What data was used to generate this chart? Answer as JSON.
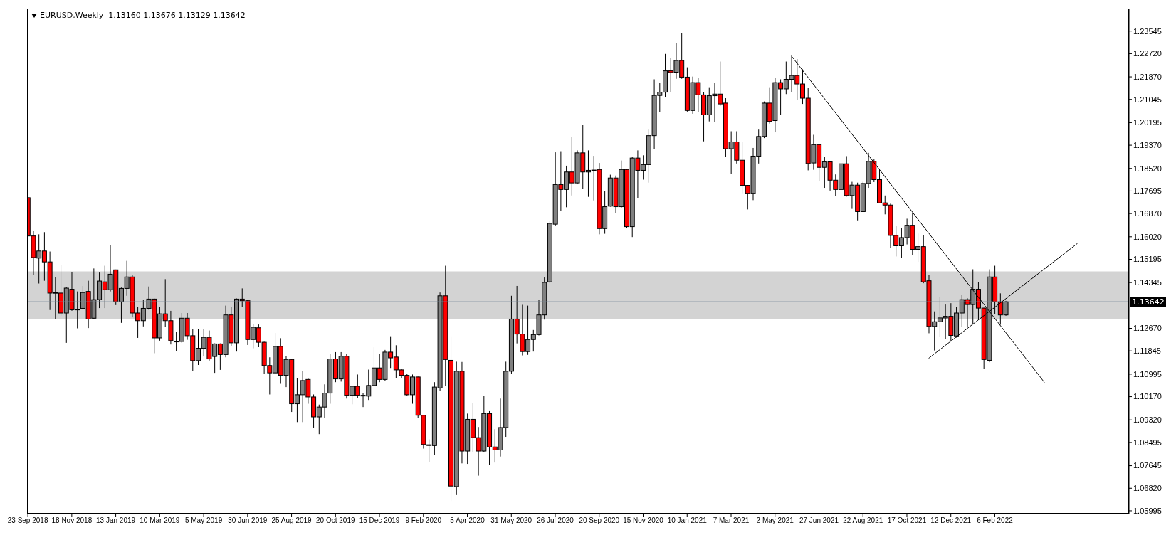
{
  "chart_data": {
    "type": "candlestick",
    "title": "EURUSD,Weekly  1.13160 1.13676 1.13129 1.13642",
    "x": [
      "2018-09-23",
      "2018-09-30",
      "2018-10-07",
      "2018-10-14",
      "2018-10-21",
      "2018-10-28",
      "2018-11-04",
      "2018-11-11",
      "2018-11-18",
      "2018-11-25",
      "2018-12-02",
      "2018-12-09",
      "2018-12-16",
      "2018-12-23",
      "2018-12-30",
      "2019-01-06",
      "2019-01-13",
      "2019-01-20",
      "2019-01-27",
      "2019-02-03",
      "2019-02-10",
      "2019-02-17",
      "2019-02-24",
      "2019-03-03",
      "2019-03-10",
      "2019-03-17",
      "2019-03-24",
      "2019-03-31",
      "2019-04-07",
      "2019-04-14",
      "2019-04-21",
      "2019-04-28",
      "2019-05-05",
      "2019-05-12",
      "2019-05-19",
      "2019-05-26",
      "2019-06-02",
      "2019-06-09",
      "2019-06-16",
      "2019-06-23",
      "2019-06-30",
      "2019-07-07",
      "2019-07-14",
      "2019-07-21",
      "2019-07-28",
      "2019-08-04",
      "2019-08-11",
      "2019-08-18",
      "2019-08-25",
      "2019-09-01",
      "2019-09-08",
      "2019-09-15",
      "2019-09-22",
      "2019-09-29",
      "2019-10-06",
      "2019-10-13",
      "2019-10-20",
      "2019-10-27",
      "2019-11-03",
      "2019-11-10",
      "2019-11-17",
      "2019-11-24",
      "2019-12-01",
      "2019-12-08",
      "2019-12-15",
      "2019-12-22",
      "2019-12-29",
      "2020-01-05",
      "2020-01-12",
      "2020-01-19",
      "2020-01-26",
      "2020-02-02",
      "2020-02-09",
      "2020-02-16",
      "2020-02-23",
      "2020-03-01",
      "2020-03-08",
      "2020-03-15",
      "2020-03-22",
      "2020-03-29",
      "2020-04-05",
      "2020-04-12",
      "2020-04-19",
      "2020-04-26",
      "2020-05-03",
      "2020-05-10",
      "2020-05-17",
      "2020-05-24",
      "2020-05-31",
      "2020-06-07",
      "2020-06-14",
      "2020-06-21",
      "2020-06-28",
      "2020-07-05",
      "2020-07-12",
      "2020-07-19",
      "2020-07-26",
      "2020-08-02",
      "2020-08-09",
      "2020-08-16",
      "2020-08-23",
      "2020-08-30",
      "2020-09-06",
      "2020-09-13",
      "2020-09-20",
      "2020-09-27",
      "2020-10-04",
      "2020-10-11",
      "2020-10-18",
      "2020-10-25",
      "2020-11-01",
      "2020-11-08",
      "2020-11-15",
      "2020-11-22",
      "2020-11-29",
      "2020-12-06",
      "2020-12-13",
      "2020-12-20",
      "2020-12-27",
      "2021-01-03",
      "2021-01-10",
      "2021-01-17",
      "2021-01-24",
      "2021-01-31",
      "2021-02-07",
      "2021-02-14",
      "2021-02-21",
      "2021-02-28",
      "2021-03-07",
      "2021-03-14",
      "2021-03-21",
      "2021-03-28",
      "2021-04-04",
      "2021-04-11",
      "2021-04-18",
      "2021-04-25",
      "2021-05-02",
      "2021-05-09",
      "2021-05-16",
      "2021-05-23",
      "2021-05-30",
      "2021-06-06",
      "2021-06-13",
      "2021-06-20",
      "2021-06-27",
      "2021-07-04",
      "2021-07-11",
      "2021-07-18",
      "2021-07-25",
      "2021-08-01",
      "2021-08-08",
      "2021-08-15",
      "2021-08-22",
      "2021-08-29",
      "2021-09-05",
      "2021-09-12",
      "2021-09-19",
      "2021-09-26",
      "2021-10-03",
      "2021-10-10",
      "2021-10-17",
      "2021-10-24",
      "2021-10-31",
      "2021-11-07",
      "2021-11-14",
      "2021-11-21",
      "2021-11-28",
      "2021-12-05",
      "2021-12-12",
      "2021-12-19",
      "2021-12-26",
      "2022-01-02",
      "2022-01-09",
      "2022-01-16",
      "2022-01-23",
      "2022-01-30",
      "2022-02-06",
      "2022-02-13",
      "2022-02-20"
    ],
    "ohlc": [
      [
        1.1745,
        1.1814,
        1.1568,
        1.1605
      ],
      [
        1.1605,
        1.1623,
        1.1462,
        1.1526
      ],
      [
        1.1524,
        1.1611,
        1.1431,
        1.155
      ],
      [
        1.155,
        1.1619,
        1.1441,
        1.151
      ],
      [
        1.151,
        1.1548,
        1.1334,
        1.1396
      ],
      [
        1.1396,
        1.1455,
        1.1301,
        1.1398
      ],
      [
        1.1396,
        1.1498,
        1.1313,
        1.1323
      ],
      [
        1.1323,
        1.1419,
        1.1214,
        1.1414
      ],
      [
        1.141,
        1.1474,
        1.1331,
        1.1335
      ],
      [
        1.1337,
        1.1402,
        1.1267,
        1.1335
      ],
      [
        1.134,
        1.1422,
        1.1338,
        1.1398
      ],
      [
        1.1402,
        1.1441,
        1.1268,
        1.1301
      ],
      [
        1.1304,
        1.1486,
        1.1301,
        1.1372
      ],
      [
        1.1372,
        1.1471,
        1.1341,
        1.144
      ],
      [
        1.1437,
        1.1496,
        1.1341,
        1.1408
      ],
      [
        1.1408,
        1.1571,
        1.1402,
        1.1465
      ],
      [
        1.1481,
        1.1482,
        1.1352,
        1.1364
      ],
      [
        1.1364,
        1.1416,
        1.1287,
        1.1413
      ],
      [
        1.1413,
        1.1514,
        1.1386,
        1.1455
      ],
      [
        1.1455,
        1.1461,
        1.1307,
        1.1323
      ],
      [
        1.1323,
        1.1344,
        1.1232,
        1.1295
      ],
      [
        1.1295,
        1.1372,
        1.1274,
        1.134
      ],
      [
        1.134,
        1.142,
        1.1335,
        1.1374
      ],
      [
        1.1374,
        1.1376,
        1.1176,
        1.1232
      ],
      [
        1.1232,
        1.1344,
        1.1222,
        1.132
      ],
      [
        1.132,
        1.1447,
        1.1271,
        1.1295
      ],
      [
        1.1295,
        1.1331,
        1.1208,
        1.1222
      ],
      [
        1.122,
        1.1255,
        1.1183,
        1.1219
      ],
      [
        1.1219,
        1.1323,
        1.1214,
        1.1304
      ],
      [
        1.1304,
        1.1323,
        1.1225,
        1.124
      ],
      [
        1.124,
        1.1265,
        1.111,
        1.1149
      ],
      [
        1.1149,
        1.1265,
        1.1133,
        1.1194
      ],
      [
        1.1194,
        1.1265,
        1.1164,
        1.1234
      ],
      [
        1.1234,
        1.1259,
        1.1149,
        1.1155
      ],
      [
        1.1164,
        1.1212,
        1.1104,
        1.121
      ],
      [
        1.121,
        1.1212,
        1.1115,
        1.1171
      ],
      [
        1.1171,
        1.135,
        1.1161,
        1.1316
      ],
      [
        1.1316,
        1.1344,
        1.1201,
        1.1214
      ],
      [
        1.1214,
        1.1376,
        1.1182,
        1.1374
      ],
      [
        1.1374,
        1.1413,
        1.1344,
        1.1368
      ],
      [
        1.1368,
        1.137,
        1.1206,
        1.1226
      ],
      [
        1.1226,
        1.1283,
        1.1194,
        1.1271
      ],
      [
        1.1269,
        1.1281,
        1.1198,
        1.1216
      ],
      [
        1.1216,
        1.1218,
        1.1101,
        1.1131
      ],
      [
        1.1131,
        1.1161,
        1.1025,
        1.1104
      ],
      [
        1.1104,
        1.125,
        1.1102,
        1.1201
      ],
      [
        1.1201,
        1.1231,
        1.1064,
        1.1095
      ],
      [
        1.1095,
        1.1165,
        1.1052,
        1.1153
      ],
      [
        1.1153,
        1.1155,
        1.0961,
        1.0991
      ],
      [
        1.0991,
        1.1085,
        1.0924,
        1.1024
      ],
      [
        1.1024,
        1.111,
        1.0924,
        1.1076
      ],
      [
        1.108,
        1.1085,
        1.0991,
        1.1016
      ],
      [
        1.1016,
        1.1025,
        1.0904,
        1.0943
      ],
      [
        1.0943,
        1.0988,
        1.088,
        1.0979
      ],
      [
        1.0979,
        1.1062,
        1.094,
        1.103
      ],
      [
        1.103,
        1.1174,
        1.0991,
        1.1155
      ],
      [
        1.1155,
        1.118,
        1.107,
        1.1082
      ],
      [
        1.1082,
        1.118,
        1.1072,
        1.1165
      ],
      [
        1.1165,
        1.1174,
        1.101,
        1.1022
      ],
      [
        1.1022,
        1.1056,
        1.0989,
        1.1055
      ],
      [
        1.1055,
        1.1098,
        1.1013,
        1.1022
      ],
      [
        1.1022,
        1.103,
        1.0979,
        1.1022
      ],
      [
        1.1019,
        1.1116,
        1.1005,
        1.1058
      ],
      [
        1.1058,
        1.1198,
        1.1055,
        1.1122
      ],
      [
        1.1122,
        1.1174,
        1.107,
        1.108
      ],
      [
        1.108,
        1.1188,
        1.1074,
        1.118
      ],
      [
        1.118,
        1.1238,
        1.1122,
        1.1159
      ],
      [
        1.1162,
        1.1205,
        1.1085,
        1.1115
      ],
      [
        1.1115,
        1.1119,
        1.1085,
        1.1095
      ],
      [
        1.1095,
        1.1101,
        1.1019,
        1.1024
      ],
      [
        1.1024,
        1.1098,
        1.0991,
        1.1089
      ],
      [
        1.1089,
        1.109,
        1.094,
        1.0949
      ],
      [
        1.0949,
        1.095,
        1.0827,
        1.0842
      ],
      [
        1.084,
        1.0861,
        1.0779,
        1.0841
      ],
      [
        1.0838,
        1.107,
        1.0803,
        1.1052
      ],
      [
        1.1049,
        1.1398,
        1.1037,
        1.1386
      ],
      [
        1.1386,
        1.1496,
        1.1056,
        1.1153
      ],
      [
        1.115,
        1.1238,
        1.0635,
        1.069
      ],
      [
        1.0688,
        1.1145,
        1.0657,
        1.111
      ],
      [
        1.111,
        1.1144,
        1.0773,
        1.0818
      ],
      [
        1.0818,
        1.0955,
        1.0771,
        1.0934
      ],
      [
        1.0934,
        1.0994,
        1.0813,
        1.0867
      ],
      [
        1.0867,
        1.0906,
        1.0728,
        1.0818
      ],
      [
        1.0818,
        1.1019,
        1.0815,
        1.0955
      ],
      [
        1.0955,
        1.0964,
        1.0766,
        1.0833
      ],
      [
        1.0833,
        1.0898,
        1.0776,
        1.0822
      ],
      [
        1.0822,
        1.101,
        1.0798,
        1.0904
      ],
      [
        1.0904,
        1.1145,
        1.087,
        1.111
      ],
      [
        1.111,
        1.1386,
        1.1101,
        1.1301
      ],
      [
        1.1301,
        1.1422,
        1.1212,
        1.1246
      ],
      [
        1.1246,
        1.1353,
        1.1168,
        1.1182
      ],
      [
        1.1182,
        1.135,
        1.117,
        1.1226
      ],
      [
        1.1226,
        1.1261,
        1.1182,
        1.1244
      ],
      [
        1.1244,
        1.1372,
        1.1241,
        1.1316
      ],
      [
        1.1316,
        1.1453,
        1.1299,
        1.1435
      ],
      [
        1.1437,
        1.166,
        1.1432,
        1.1651
      ],
      [
        1.1648,
        1.1911,
        1.1642,
        1.1793
      ],
      [
        1.1793,
        1.1915,
        1.1696,
        1.1775
      ],
      [
        1.1775,
        1.1862,
        1.171,
        1.1839
      ],
      [
        1.1839,
        1.1966,
        1.1753,
        1.1799
      ],
      [
        1.1799,
        1.1918,
        1.1794,
        1.1909
      ],
      [
        1.1909,
        1.2012,
        1.1778,
        1.1839
      ],
      [
        1.1839,
        1.1918,
        1.1748,
        1.1845
      ],
      [
        1.1845,
        1.1898,
        1.1735,
        1.1846
      ],
      [
        1.1848,
        1.1872,
        1.1611,
        1.1632
      ],
      [
        1.1632,
        1.1769,
        1.1613,
        1.1712
      ],
      [
        1.1714,
        1.1829,
        1.1712,
        1.1817
      ],
      [
        1.1817,
        1.1826,
        1.1688,
        1.1712
      ],
      [
        1.1712,
        1.1881,
        1.1707,
        1.1848
      ],
      [
        1.1848,
        1.1851,
        1.1635,
        1.1639
      ],
      [
        1.1639,
        1.1894,
        1.1601,
        1.189
      ],
      [
        1.189,
        1.1918,
        1.1743,
        1.1845
      ],
      [
        1.1845,
        1.19,
        1.1811,
        1.1866
      ],
      [
        1.1866,
        1.1994,
        1.18,
        1.1972
      ],
      [
        1.1972,
        1.2178,
        1.1923,
        1.2119
      ],
      [
        1.2119,
        1.2164,
        1.2057,
        1.2131
      ],
      [
        1.2131,
        1.2271,
        1.2113,
        1.2209
      ],
      [
        1.2209,
        1.2255,
        1.213,
        1.2203
      ],
      [
        1.2204,
        1.231,
        1.218,
        1.2247
      ],
      [
        1.2247,
        1.2348,
        1.218,
        1.2186
      ],
      [
        1.2186,
        1.2222,
        1.206,
        1.2064
      ],
      [
        1.2064,
        1.2188,
        1.2052,
        1.2166
      ],
      [
        1.2166,
        1.2182,
        1.2057,
        1.2121
      ],
      [
        1.2121,
        1.213,
        1.1951,
        1.2048
      ],
      [
        1.2048,
        1.2149,
        1.2024,
        1.2118
      ],
      [
        1.2118,
        1.2166,
        1.2021,
        1.2124
      ],
      [
        1.2124,
        1.2243,
        1.2081,
        1.2088
      ],
      [
        1.2091,
        1.2109,
        1.1893,
        1.1924
      ],
      [
        1.1924,
        1.1988,
        1.1833,
        1.1949
      ],
      [
        1.1949,
        1.1988,
        1.187,
        1.1882
      ],
      [
        1.1882,
        1.1949,
        1.1761,
        1.179
      ],
      [
        1.179,
        1.1791,
        1.1702,
        1.1761
      ],
      [
        1.1761,
        1.1927,
        1.1736,
        1.1897
      ],
      [
        1.1897,
        1.1994,
        1.187,
        1.1969
      ],
      [
        1.1969,
        1.2097,
        1.1963,
        1.2091
      ],
      [
        1.2091,
        1.2149,
        1.2016,
        1.2024
      ],
      [
        1.2027,
        1.2182,
        1.1984,
        1.2166
      ],
      [
        1.2166,
        1.2178,
        1.2048,
        1.2143
      ],
      [
        1.2143,
        1.2243,
        1.2124,
        1.2178
      ],
      [
        1.2178,
        1.2263,
        1.213,
        1.2192
      ],
      [
        1.2192,
        1.2252,
        1.2103,
        1.2161
      ],
      [
        1.2161,
        1.2215,
        1.2088,
        1.2109
      ],
      [
        1.2109,
        1.2146,
        1.1845,
        1.187
      ],
      [
        1.1872,
        1.1975,
        1.1847,
        1.1939
      ],
      [
        1.1939,
        1.1941,
        1.1805,
        1.1856
      ],
      [
        1.1856,
        1.1893,
        1.1781,
        1.1876
      ],
      [
        1.1876,
        1.1878,
        1.1771,
        1.1809
      ],
      [
        1.1809,
        1.183,
        1.1751,
        1.1775
      ],
      [
        1.1775,
        1.1909,
        1.1769,
        1.1869
      ],
      [
        1.1869,
        1.1897,
        1.1749,
        1.1753
      ],
      [
        1.1753,
        1.1803,
        1.1704,
        1.1791
      ],
      [
        1.1791,
        1.18,
        1.1662,
        1.1694
      ],
      [
        1.1694,
        1.1803,
        1.1693,
        1.1797
      ],
      [
        1.1797,
        1.1909,
        1.1781,
        1.1878
      ],
      [
        1.1878,
        1.1885,
        1.1802,
        1.1811
      ],
      [
        1.1811,
        1.1848,
        1.1724,
        1.1726
      ],
      [
        1.1726,
        1.1753,
        1.1684,
        1.1718
      ],
      [
        1.1718,
        1.1723,
        1.156,
        1.1607
      ],
      [
        1.1607,
        1.1641,
        1.153,
        1.1569
      ],
      [
        1.1569,
        1.1635,
        1.1524,
        1.1599
      ],
      [
        1.1599,
        1.1668,
        1.1574,
        1.1644
      ],
      [
        1.1644,
        1.169,
        1.1535,
        1.1556
      ],
      [
        1.1556,
        1.1614,
        1.151,
        1.1566
      ],
      [
        1.1566,
        1.1608,
        1.1432,
        1.1437
      ],
      [
        1.1441,
        1.1461,
        1.1249,
        1.1274
      ],
      [
        1.1274,
        1.1329,
        1.1186,
        1.1291
      ],
      [
        1.1291,
        1.1382,
        1.1235,
        1.1305
      ],
      [
        1.1305,
        1.1354,
        1.1229,
        1.1311
      ],
      [
        1.1311,
        1.1359,
        1.122,
        1.1241
      ],
      [
        1.1239,
        1.1344,
        1.1233,
        1.1323
      ],
      [
        1.1323,
        1.1389,
        1.1271,
        1.1372
      ],
      [
        1.1372,
        1.1377,
        1.1271,
        1.1354
      ],
      [
        1.1354,
        1.1483,
        1.1283,
        1.141
      ],
      [
        1.141,
        1.1435,
        1.1299,
        1.1341
      ],
      [
        1.1341,
        1.1342,
        1.1119,
        1.1153
      ],
      [
        1.115,
        1.1483,
        1.1143,
        1.1455
      ],
      [
        1.1455,
        1.1496,
        1.1319,
        1.1364
      ],
      [
        1.1364,
        1.1395,
        1.128,
        1.1316
      ],
      [
        1.1316,
        1.13676,
        1.13129,
        1.13642
      ]
    ],
    "colors": [
      "#ff0000",
      "#ff0000",
      "#808080",
      "#ff0000",
      "#ff0000",
      "#808080",
      "#ff0000",
      "#808080",
      "#ff0000",
      "#ff0000",
      "#808080",
      "#ff0000",
      "#808080",
      "#808080",
      "#ff0000",
      "#808080",
      "#ff0000",
      "#808080",
      "#808080",
      "#ff0000",
      "#ff0000",
      "#808080",
      "#808080",
      "#ff0000",
      "#808080",
      "#ff0000",
      "#ff0000",
      "#ff0000",
      "#808080",
      "#ff0000",
      "#ff0000",
      "#808080",
      "#808080",
      "#ff0000",
      "#808080",
      "#ff0000",
      "#808080",
      "#ff0000",
      "#808080",
      "#ff0000",
      "#ff0000",
      "#808080",
      "#ff0000",
      "#ff0000",
      "#ff0000",
      "#808080",
      "#ff0000",
      "#808080",
      "#ff0000",
      "#808080",
      "#808080",
      "#ff0000",
      "#ff0000",
      "#808080",
      "#808080",
      "#808080",
      "#ff0000",
      "#808080",
      "#ff0000",
      "#808080",
      "#ff0000",
      "#808080",
      "#808080",
      "#808080",
      "#ff0000",
      "#808080",
      "#ff0000",
      "#ff0000",
      "#ff0000",
      "#ff0000",
      "#808080",
      "#ff0000",
      "#ff0000",
      "#808080",
      "#808080",
      "#808080",
      "#ff0000",
      "#ff0000",
      "#808080",
      "#ff0000",
      "#808080",
      "#ff0000",
      "#ff0000",
      "#808080",
      "#ff0000",
      "#ff0000",
      "#808080",
      "#808080",
      "#808080",
      "#ff0000",
      "#ff0000",
      "#808080",
      "#808080",
      "#808080",
      "#808080",
      "#808080",
      "#808080",
      "#ff0000",
      "#808080",
      "#ff0000",
      "#808080",
      "#ff0000",
      "#808080",
      "#808080",
      "#ff0000",
      "#808080",
      "#808080",
      "#ff0000",
      "#808080",
      "#ff0000",
      "#808080",
      "#ff0000",
      "#808080",
      "#808080",
      "#808080",
      "#808080",
      "#808080",
      "#ff0000",
      "#808080",
      "#ff0000",
      "#ff0000",
      "#808080",
      "#ff0000",
      "#ff0000",
      "#808080",
      "#808080",
      "#ff0000",
      "#ff0000",
      "#808080",
      "#ff0000",
      "#ff0000",
      "#ff0000",
      "#808080",
      "#808080",
      "#808080",
      "#ff0000",
      "#808080",
      "#ff0000",
      "#808080",
      "#808080",
      "#ff0000",
      "#ff0000",
      "#ff0000",
      "#808080",
      "#ff0000",
      "#808080",
      "#ff0000",
      "#ff0000",
      "#808080",
      "#ff0000",
      "#808080",
      "#ff0000",
      "#808080",
      "#808080",
      "#ff0000",
      "#ff0000",
      "#ff0000",
      "#ff0000",
      "#ff0000",
      "#808080",
      "#808080",
      "#ff0000",
      "#808080",
      "#ff0000",
      "#ff0000",
      "#808080",
      "#808080",
      "#808080",
      "#ff0000",
      "#808080",
      "#808080",
      "#ff0000",
      "#808080",
      "#ff0000",
      "#ff0000",
      "#808080",
      "#ff0000",
      "#ff0000",
      "#808080"
    ],
    "series": [
      {
        "type": "line",
        "x": [
          "2021-05-23",
          "2022-04-10"
        ],
        "values": [
          1.2263,
          1.107
        ],
        "color": "#000000"
      },
      {
        "type": "line",
        "x": [
          "2021-11-14",
          "2022-05-22"
        ],
        "values": [
          1.1158,
          1.1577
        ],
        "color": "#000000"
      }
    ],
    "xlim": [
      "2018-09-22",
      "2022-07-27"
    ],
    "xticks": [
      {
        "value": "2018-09-23",
        "label": "23 Sep 2018"
      },
      {
        "value": "2018-11-18",
        "label": "18 Nov 2018"
      },
      {
        "value": "2019-01-13",
        "label": "13 Jan 2019"
      },
      {
        "value": "2019-03-10",
        "label": "10 Mar 2019"
      },
      {
        "value": "2019-05-05",
        "label": "5 May 2019"
      },
      {
        "value": "2019-06-30",
        "label": "30 Jun 2019"
      },
      {
        "value": "2019-08-25",
        "label": "25 Aug 2019"
      },
      {
        "value": "2019-10-20",
        "label": "20 Oct 2019"
      },
      {
        "value": "2019-12-15",
        "label": "15 Dec 2019"
      },
      {
        "value": "2020-02-09",
        "label": "9 Feb 2020"
      },
      {
        "value": "2020-04-05",
        "label": "5 Apr 2020"
      },
      {
        "value": "2020-05-31",
        "label": "31 May 2020"
      },
      {
        "value": "2020-07-26",
        "label": "26 Jul 2020"
      },
      {
        "value": "2020-09-20",
        "label": "20 Sep 2020"
      },
      {
        "value": "2020-11-15",
        "label": "15 Nov 2020"
      },
      {
        "value": "2021-01-10",
        "label": "10 Jan 2021"
      },
      {
        "value": "2021-03-07",
        "label": "7 Mar 2021"
      },
      {
        "value": "2021-05-02",
        "label": "2 May 2021"
      },
      {
        "value": "2021-06-27",
        "label": "27 Jun 2021"
      },
      {
        "value": "2021-08-22",
        "label": "22 Aug 2021"
      },
      {
        "value": "2021-10-17",
        "label": "17 Oct 2021"
      },
      {
        "value": "2021-12-12",
        "label": "12 Dec 2021"
      },
      {
        "value": "2022-02-06",
        "label": "6 Feb 2022"
      }
    ],
    "ylim": [
      1.0589,
      1.2437
    ],
    "yticks": [
      1.05995,
      {
        "value": 1.0682,
        "label": "1.06820"
      },
      1.07645,
      1.08495,
      {
        "value": 1.0932,
        "label": "1.09320"
      },
      {
        "value": 1.1017,
        "label": "1.10170"
      },
      1.10995,
      1.11845,
      {
        "value": 1.1267,
        "label": "1.12670"
      },
      1.14345,
      1.15195,
      {
        "value": 1.1602,
        "label": "1.16020"
      },
      {
        "value": 1.1687,
        "label": "1.16870"
      },
      1.17695,
      {
        "value": 1.1852,
        "label": "1.18520"
      },
      {
        "value": 1.1937,
        "label": "1.19370"
      },
      1.20195,
      1.21045,
      {
        "value": 1.2187,
        "label": "1.21870"
      },
      {
        "value": 1.2272,
        "label": "1.22720"
      },
      1.23545
    ],
    "ref_lines": [
      {
        "axis": "y",
        "value": 1.13642,
        "label": "1.13642",
        "color": "#778899"
      }
    ],
    "bands": [
      {
        "axis": "y",
        "from": 1.13,
        "to": 1.1475,
        "color": "#d3d3d3"
      }
    ]
  }
}
